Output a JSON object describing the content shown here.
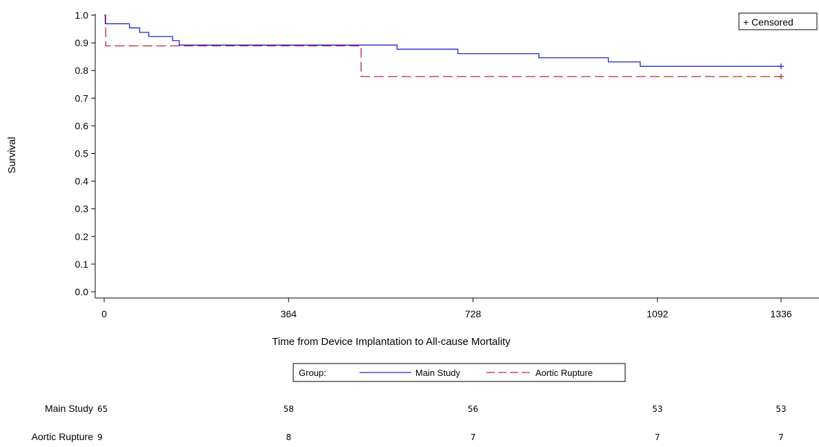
{
  "chart_data": {
    "type": "line",
    "subtype": "kaplan-meier-step",
    "xlabel": "Time from Device Implantation to All-cause Mortality",
    "ylabel": "Survival",
    "xlim": [
      0,
      1336
    ],
    "ylim": [
      0,
      1.0
    ],
    "x_ticks": [
      0,
      364,
      728,
      1092,
      1336
    ],
    "y_ticks": [
      0.0,
      0.1,
      0.2,
      0.3,
      0.4,
      0.5,
      0.6,
      0.7,
      0.8,
      0.9,
      1.0
    ],
    "y_tick_labels": [
      "0.0",
      "0.1",
      "0.2",
      "0.3",
      "0.4",
      "0.5",
      "0.6",
      "0.7",
      "0.8",
      "0.9",
      "1.0"
    ],
    "grid": false,
    "censored_label": "+ Censored",
    "legend": {
      "title": "Group:",
      "placement": "bottom-center",
      "entries": [
        "Main Study",
        "Aortic Rupture"
      ]
    },
    "series": [
      {
        "name": "Main Study",
        "color": "#2020d0",
        "dash": "solid",
        "steps": [
          [
            0,
            1.0
          ],
          [
            2,
            0.969
          ],
          [
            50,
            0.954
          ],
          [
            70,
            0.938
          ],
          [
            88,
            0.923
          ],
          [
            135,
            0.908
          ],
          [
            148,
            0.892
          ],
          [
            578,
            0.877
          ],
          [
            698,
            0.861
          ],
          [
            858,
            0.846
          ],
          [
            995,
            0.831
          ],
          [
            1058,
            0.815
          ],
          [
            1336,
            0.815
          ]
        ],
        "censored": [
          [
            1336,
            0.815
          ]
        ]
      },
      {
        "name": "Aortic Rupture",
        "color": "#c0203a",
        "dash": "dashed",
        "steps": [
          [
            0,
            1.0
          ],
          [
            3,
            0.889
          ],
          [
            507,
            0.778
          ],
          [
            1336,
            0.778
          ]
        ],
        "censored": [
          [
            1336,
            0.778
          ]
        ]
      }
    ],
    "risk_table": {
      "times": [
        0,
        364,
        728,
        1092,
        1336
      ],
      "rows": [
        {
          "name": "Main Study",
          "values": [
            "65",
            "58",
            "56",
            "53",
            "53"
          ]
        },
        {
          "name": "Aortic Rupture",
          "values": [
            "9",
            "8",
            "7",
            "7",
            "7"
          ]
        }
      ]
    }
  }
}
